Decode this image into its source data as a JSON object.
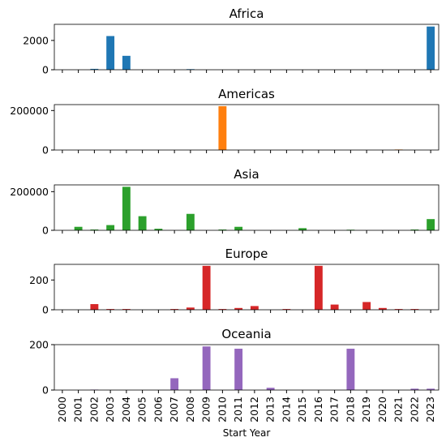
{
  "chart_data": {
    "type": "bar",
    "xlabel": "Start Year",
    "categories": [
      "2000",
      "2001",
      "2002",
      "2003",
      "2004",
      "2005",
      "2006",
      "2007",
      "2008",
      "2009",
      "2010",
      "2011",
      "2012",
      "2013",
      "2014",
      "2015",
      "2016",
      "2017",
      "2018",
      "2019",
      "2020",
      "2021",
      "2022",
      "2023"
    ],
    "panels": [
      {
        "title": "Africa",
        "color": "#1f77b4",
        "ylim": [
          0,
          3100
        ],
        "yticks": [
          0,
          2000
        ],
        "values": [
          0,
          0,
          60,
          2300,
          950,
          0,
          0,
          0,
          40,
          0,
          0,
          0,
          0,
          0,
          0,
          0,
          0,
          0,
          0,
          0,
          0,
          0,
          0,
          2950
        ]
      },
      {
        "title": "Americas",
        "color": "#ff7f0e",
        "ylim": [
          0,
          230000
        ],
        "yticks": [
          0,
          200000
        ],
        "values": [
          0,
          0,
          0,
          0,
          0,
          0,
          0,
          0,
          0,
          0,
          222000,
          0,
          0,
          0,
          0,
          0,
          0,
          0,
          0,
          0,
          0,
          2500,
          0,
          0
        ]
      },
      {
        "title": "Asia",
        "color": "#2ca02c",
        "ylim": [
          0,
          235000
        ],
        "yticks": [
          0,
          200000
        ],
        "values": [
          0,
          18000,
          4000,
          27000,
          225000,
          73000,
          8000,
          0,
          85000,
          0,
          4000,
          18000,
          0,
          0,
          0,
          11000,
          0,
          0,
          3000,
          0,
          0,
          0,
          4000,
          58000
        ]
      },
      {
        "title": "Europe",
        "color": "#d62728",
        "ylim": [
          0,
          305
        ],
        "yticks": [
          0,
          200
        ],
        "values": [
          0,
          0,
          38,
          5,
          5,
          0,
          0,
          5,
          15,
          295,
          5,
          12,
          25,
          0,
          5,
          0,
          295,
          35,
          0,
          52,
          12,
          5,
          5,
          0
        ]
      },
      {
        "title": "Oceania",
        "color": "#9467bd",
        "ylim": [
          0,
          200
        ],
        "yticks": [
          0,
          200
        ],
        "values": [
          0,
          0,
          2,
          0,
          0,
          0,
          0,
          52,
          0,
          192,
          0,
          182,
          0,
          10,
          0,
          0,
          0,
          0,
          182,
          0,
          0,
          0,
          6,
          6
        ]
      }
    ]
  }
}
